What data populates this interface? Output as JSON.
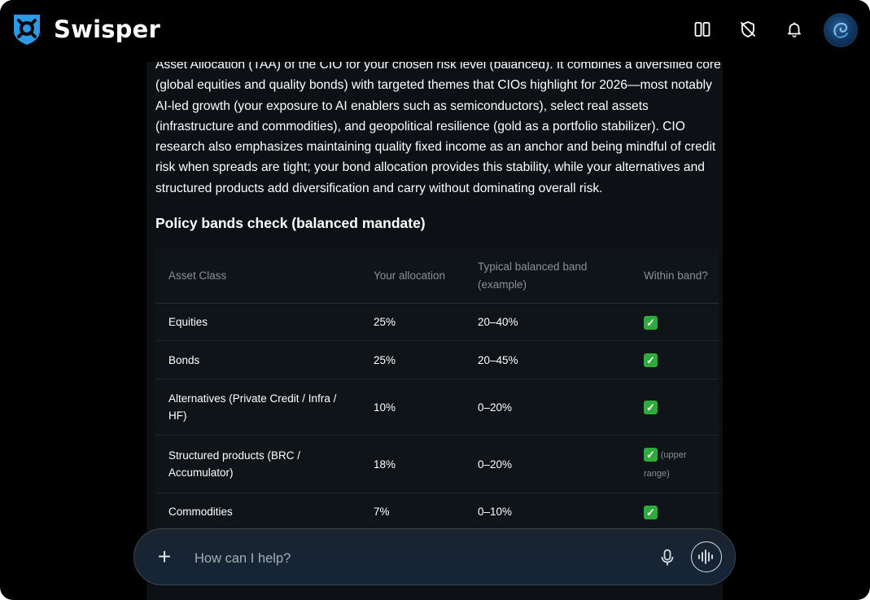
{
  "app": {
    "name": "Swisper"
  },
  "header": {
    "icons": [
      "sidebar-toggle-icon",
      "shield-off-icon",
      "bell-icon",
      "user-avatar"
    ]
  },
  "message": {
    "paragraph": "Asset Allocation (TAA) of the CIO for your chosen risk level (balanced). It combines a diversified core (global equities and quality bonds) with targeted themes that CIOs highlight for 2026—most notably AI-led growth (your exposure to AI enablers such as semiconductors), select real assets (infrastructure and commodities), and geopolitical resilience (gold as a portfolio stabilizer). CIO research also emphasizes maintaining quality fixed income as an anchor and being mindful of credit risk when spreads are tight; your bond allocation provides this stability, while your alternatives and structured products add diversification and carry without dominating overall risk.",
    "section_title": "Policy bands check (balanced mandate)",
    "table": {
      "headers": [
        "Asset Class",
        "Your allocation",
        "Typical balanced band (example)",
        "Within band?"
      ],
      "rows": [
        {
          "asset": "Equities",
          "allocation": "25%",
          "band": "20–40%",
          "check": "✓",
          "note": ""
        },
        {
          "asset": "Bonds",
          "allocation": "25%",
          "band": "20–45%",
          "check": "✓",
          "note": ""
        },
        {
          "asset": "Alternatives (Private Credit / Infra / HF)",
          "allocation": "10%",
          "band": "0–20%",
          "check": "✓",
          "note": ""
        },
        {
          "asset": "Structured products (BRC / Accumulator)",
          "allocation": "18%",
          "band": "0–20%",
          "check": "✓",
          "note": "(upper range)"
        },
        {
          "asset": "Commodities",
          "allocation": "7%",
          "band": "0–10%",
          "check": "✓",
          "note": ""
        }
      ]
    }
  },
  "composer": {
    "plus_label": "+",
    "placeholder": "How can I help?"
  },
  "colors": {
    "background": "#000000",
    "content_bg": "#0d1116",
    "logo_blue": "#2d9ae6",
    "check_green": "#2eab3c"
  }
}
